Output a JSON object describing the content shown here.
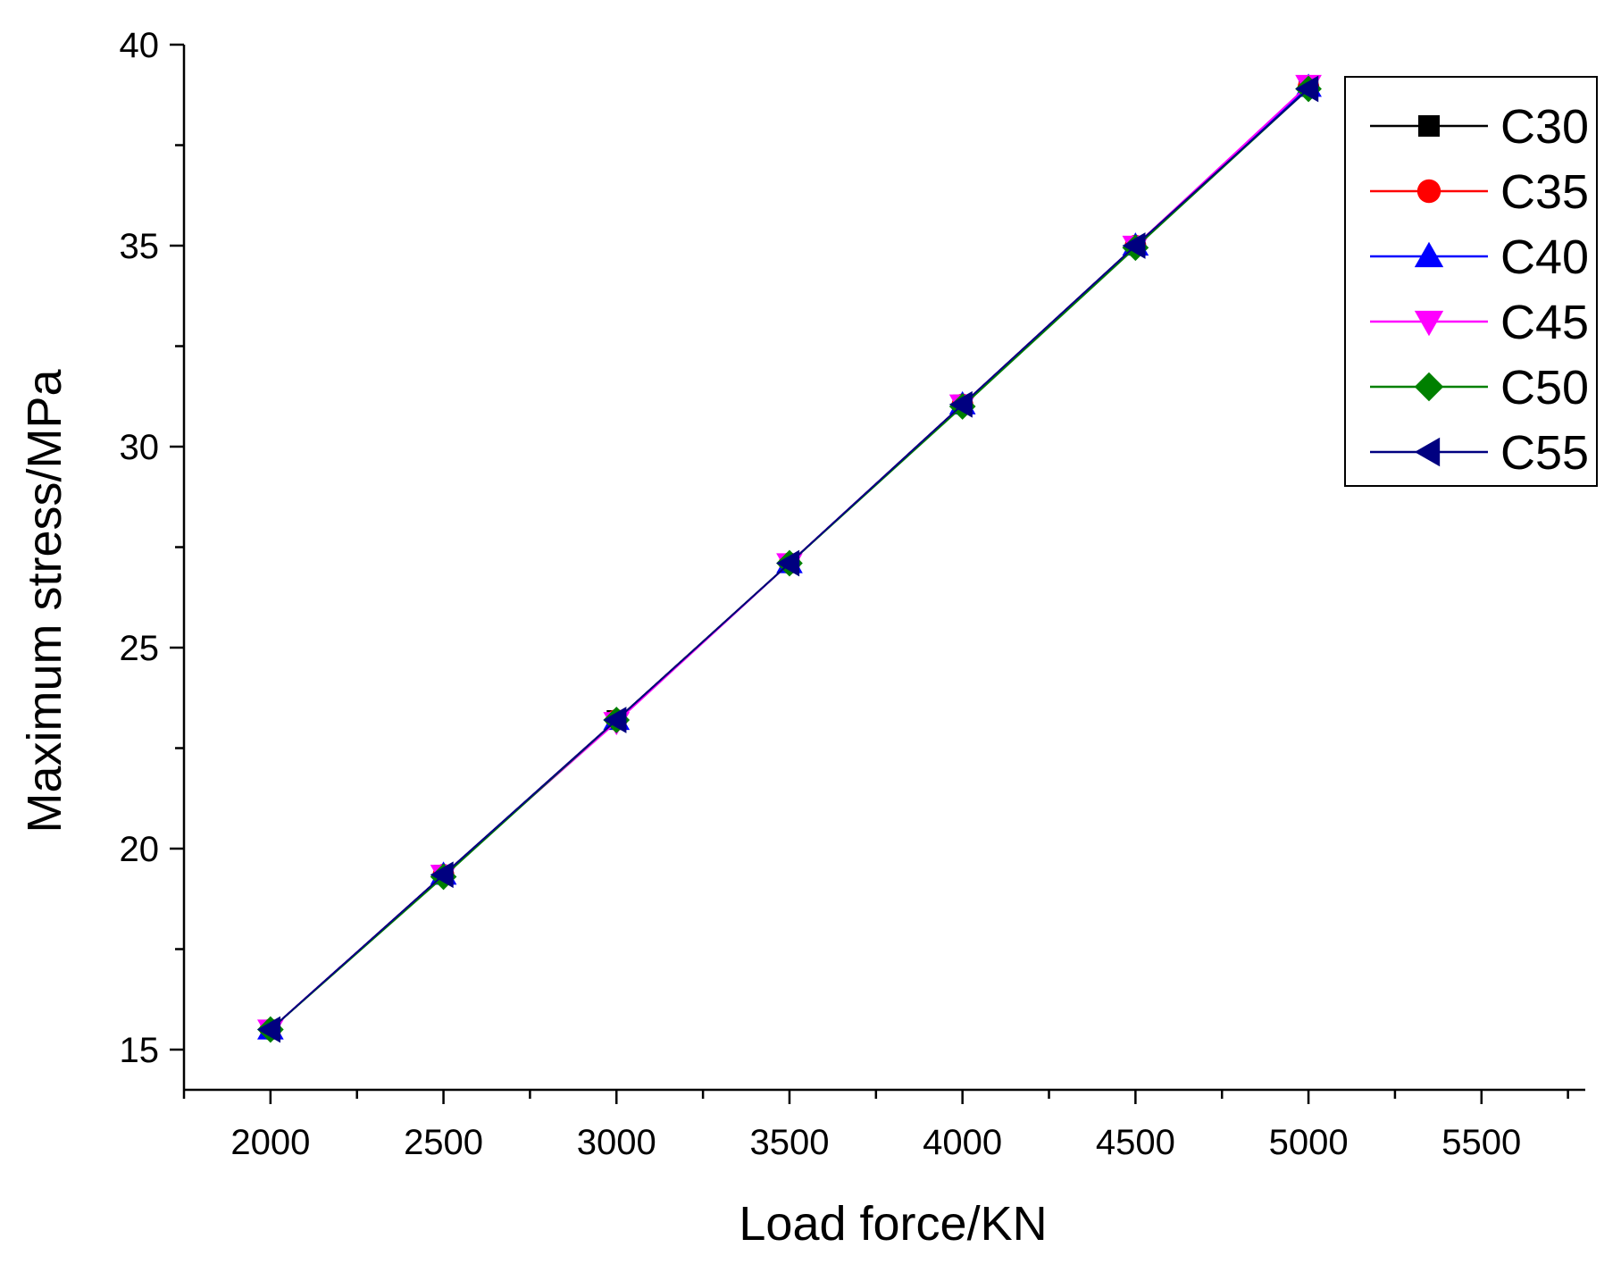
{
  "chart_data": {
    "type": "line",
    "title": "",
    "xlabel": "Load force/KN",
    "ylabel": "Maximum stress/MPa",
    "xlim": [
      1750,
      5800
    ],
    "ylim": [
      14,
      40
    ],
    "x_ticks": [
      "2000",
      "2500",
      "3000",
      "3500",
      "4000",
      "4500",
      "5000",
      "5500"
    ],
    "y_ticks": [
      "15",
      "20",
      "25",
      "30",
      "35",
      "40"
    ],
    "grid": false,
    "legend_position": "top-right",
    "x": [
      2000,
      2500,
      3000,
      3500,
      4000,
      4500,
      5000
    ],
    "series": [
      {
        "name": "C30",
        "color": "#000000",
        "marker": "square",
        "values": [
          15.5,
          19.35,
          23.2,
          27.1,
          31.05,
          35.0,
          38.95
        ]
      },
      {
        "name": "C35",
        "color": "#ff0000",
        "marker": "circle",
        "values": [
          15.5,
          19.35,
          23.2,
          27.1,
          31.05,
          35.0,
          38.95
        ]
      },
      {
        "name": "C40",
        "color": "#0000ff",
        "marker": "triangle-up",
        "values": [
          15.5,
          19.35,
          23.2,
          27.1,
          31.05,
          35.0,
          38.95
        ]
      },
      {
        "name": "C45",
        "color": "#ff00ff",
        "marker": "triangle-down",
        "values": [
          15.5,
          19.35,
          23.15,
          27.1,
          31.05,
          35.0,
          39.0
        ]
      },
      {
        "name": "C50",
        "color": "#008000",
        "marker": "diamond",
        "values": [
          15.5,
          19.3,
          23.2,
          27.1,
          31.0,
          34.95,
          38.9
        ]
      },
      {
        "name": "C55",
        "color": "#000080",
        "marker": "triangle-left",
        "values": [
          15.5,
          19.35,
          23.2,
          27.1,
          31.05,
          35.0,
          38.9
        ]
      }
    ]
  }
}
